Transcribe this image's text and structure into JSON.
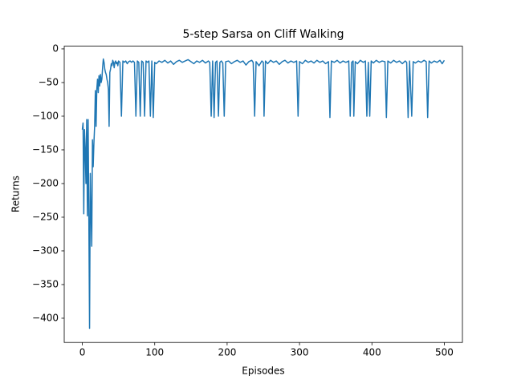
{
  "chart_data": {
    "type": "line",
    "title": "5-step Sarsa on Cliff Walking",
    "x_label": "Episodes",
    "y_label": "Returns",
    "x": [
      0,
      1,
      2,
      3,
      4,
      5,
      6,
      7,
      8,
      9,
      10,
      11,
      12,
      13,
      14,
      15,
      16,
      17,
      18,
      19,
      20,
      21,
      22,
      23,
      24,
      25,
      26,
      27,
      28,
      29,
      30,
      31,
      32,
      33,
      34,
      35,
      36,
      37,
      38,
      39,
      40,
      41,
      42,
      43,
      44,
      45,
      46,
      47,
      48,
      49,
      50,
      52,
      54,
      56,
      58,
      60,
      62,
      64,
      66,
      68,
      70,
      72,
      74,
      76,
      78,
      80,
      82,
      84,
      86,
      88,
      90,
      92,
      94,
      96,
      98,
      100,
      102,
      106,
      110,
      114,
      118,
      122,
      126,
      130,
      134,
      138,
      142,
      146,
      150,
      154,
      158,
      162,
      166,
      170,
      174,
      176,
      178,
      180,
      182,
      184,
      186,
      188,
      190,
      192,
      194,
      196,
      198,
      202,
      206,
      210,
      214,
      218,
      222,
      226,
      230,
      234,
      236,
      238,
      240,
      244,
      248,
      250,
      251,
      253,
      256,
      260,
      264,
      268,
      272,
      276,
      280,
      284,
      288,
      292,
      296,
      298,
      300,
      304,
      308,
      312,
      316,
      320,
      324,
      328,
      332,
      336,
      340,
      342,
      344,
      348,
      352,
      356,
      360,
      364,
      368,
      370,
      372,
      374,
      375,
      377,
      380,
      384,
      388,
      391,
      393,
      395,
      397,
      399,
      402,
      406,
      410,
      414,
      418,
      420,
      422,
      426,
      430,
      434,
      438,
      442,
      446,
      448,
      450,
      452,
      455,
      457,
      460,
      464,
      468,
      472,
      475,
      477,
      479,
      482,
      486,
      490,
      494,
      497,
      500
    ],
    "series": [
      {
        "name": "Returns",
        "color": "#1f77b4",
        "values": [
          -120,
          -110,
          -245,
          -120,
          -150,
          -200,
          -105,
          -248,
          -105,
          -250,
          -415,
          -185,
          -240,
          -293,
          -135,
          -175,
          -140,
          -115,
          -62,
          -115,
          -60,
          -45,
          -65,
          -40,
          -55,
          -38,
          -50,
          -45,
          -28,
          -15,
          -20,
          -30,
          -35,
          -38,
          -45,
          -50,
          -60,
          -115,
          -35,
          -30,
          -22,
          -25,
          -17,
          -20,
          -28,
          -20,
          -18,
          -22,
          -20,
          -25,
          -18,
          -20,
          -100,
          -18,
          -20,
          -18,
          -22,
          -19,
          -18,
          -20,
          -18,
          -20,
          -100,
          -18,
          -20,
          -100,
          -18,
          -20,
          -100,
          -18,
          -20,
          -18,
          -100,
          -18,
          -102,
          -20,
          -22,
          -18,
          -20,
          -17,
          -21,
          -18,
          -23,
          -19,
          -17,
          -20,
          -18,
          -16,
          -19,
          -22,
          -18,
          -20,
          -17,
          -21,
          -18,
          -20,
          -100,
          -18,
          -102,
          -20,
          -18,
          -100,
          -20,
          -18,
          -21,
          -100,
          -19,
          -18,
          -22,
          -19,
          -17,
          -20,
          -18,
          -24,
          -19,
          -17,
          -20,
          -100,
          -19,
          -25,
          -18,
          -20,
          -100,
          -18,
          -22,
          -17,
          -20,
          -18,
          -23,
          -19,
          -17,
          -21,
          -18,
          -20,
          -18,
          -100,
          -19,
          -22,
          -17,
          -20,
          -18,
          -21,
          -17,
          -20,
          -18,
          -22,
          -19,
          -102,
          -18,
          -20,
          -17,
          -21,
          -18,
          -20,
          -18,
          -100,
          -20,
          -18,
          -100,
          -19,
          -22,
          -17,
          -20,
          -18,
          -100,
          -20,
          -100,
          -18,
          -21,
          -17,
          -20,
          -18,
          -19,
          -102,
          -18,
          -21,
          -17,
          -20,
          -18,
          -22,
          -18,
          -20,
          -102,
          -18,
          -100,
          -19,
          -21,
          -18,
          -20,
          -17,
          -19,
          -102,
          -18,
          -21,
          -18,
          -20,
          -17,
          -22,
          -17
        ]
      }
    ],
    "xlim": [
      -25,
      525
    ],
    "ylim": [
      -436,
      4
    ],
    "xticks": [
      0,
      100,
      200,
      300,
      400,
      500
    ],
    "yticks": [
      0,
      {
        "value": -50,
        "label": "−50"
      },
      {
        "value": -100,
        "label": "−100"
      },
      {
        "value": -150,
        "label": "−150"
      },
      {
        "value": -200,
        "label": "−200"
      },
      {
        "value": -250,
        "label": "−250"
      },
      {
        "value": -300,
        "label": "−300"
      },
      {
        "value": -350,
        "label": "−350"
      },
      {
        "value": -400,
        "label": "−400"
      }
    ]
  }
}
